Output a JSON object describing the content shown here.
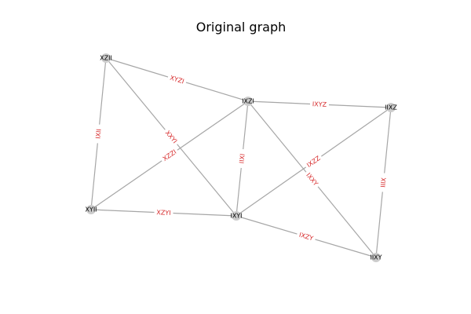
{
  "title": "Original graph",
  "colors": {
    "node_fill": "#cccccc",
    "edge_stroke": "#a6a6a6",
    "edge_label": "#d62728",
    "label_bg": "#ffffff"
  },
  "nodes": [
    {
      "id": "XZII",
      "label": "XZII"
    },
    {
      "id": "IXZI",
      "label": "IXZI"
    },
    {
      "id": "IIXZ",
      "label": "IIXZ"
    },
    {
      "id": "XYII",
      "label": "XYII"
    },
    {
      "id": "IXYI",
      "label": "IXYI"
    },
    {
      "id": "IIXY",
      "label": "IIXY"
    }
  ],
  "edges": [
    {
      "source": "XZII",
      "target": "IXZI",
      "label": "XYZI"
    },
    {
      "source": "XZII",
      "target": "XYII",
      "label": "IXII"
    },
    {
      "source": "XZII",
      "target": "IXYI",
      "label": "XXYI"
    },
    {
      "source": "IXZI",
      "target": "IIXZ",
      "label": "IXYZ"
    },
    {
      "source": "IXZI",
      "target": "XYII",
      "label": "XZZI"
    },
    {
      "source": "IXZI",
      "target": "IXYI",
      "label": "IIXI"
    },
    {
      "source": "IXZI",
      "target": "IIXY",
      "label": "IXXY"
    },
    {
      "source": "IIXZ",
      "target": "IXYI",
      "label": "IXZZ"
    },
    {
      "source": "IIXZ",
      "target": "IIXY",
      "label": "IIIX"
    },
    {
      "source": "XYII",
      "target": "IXYI",
      "label": "XZYI"
    },
    {
      "source": "IXYI",
      "target": "IIXY",
      "label": "IXZY"
    }
  ]
}
